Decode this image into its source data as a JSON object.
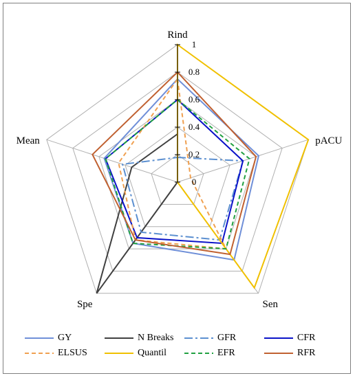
{
  "chart_data": {
    "type": "radar",
    "axes": [
      "Rind",
      "pACU",
      "Sen",
      "Spe",
      "Mean"
    ],
    "rmax": 1,
    "ticks": [
      "0",
      "0.2",
      "0.4",
      "0.6",
      "0.8",
      "1"
    ],
    "tick_values": [
      0,
      0.2,
      0.4,
      0.6,
      0.8,
      1
    ],
    "grid": true,
    "legend_position": "bottom",
    "series": [
      {
        "name": "GY",
        "values": [
          0.75,
          0.62,
          0.7,
          0.55,
          0.56
        ],
        "color": "#6f8fd8",
        "dash": "solid"
      },
      {
        "name": "N Breaks",
        "values": [
          0.35,
          0.0,
          0.0,
          1.0,
          0.35
        ],
        "color": "#404040",
        "dash": "solid"
      },
      {
        "name": "GFR",
        "values": [
          0.18,
          0.5,
          0.52,
          0.45,
          0.42
        ],
        "color": "#5b8fd0",
        "dash": "dashdot"
      },
      {
        "name": "CFR",
        "values": [
          0.6,
          0.5,
          0.55,
          0.5,
          0.55
        ],
        "color": "#0a12c8",
        "dash": "solid"
      },
      {
        "name": "ELSUS",
        "values": [
          0.75,
          0.1,
          0.6,
          0.52,
          0.45
        ],
        "color": "#f0a050",
        "dash": "dash"
      },
      {
        "name": "Quantil",
        "values": [
          1.0,
          1.0,
          0.95,
          0.0,
          0.0
        ],
        "color": "#f0c000",
        "dash": "solid"
      },
      {
        "name": "EFR",
        "values": [
          0.6,
          0.55,
          0.6,
          0.55,
          0.55
        ],
        "color": "#20a040",
        "dash": "dash"
      },
      {
        "name": "RFR",
        "values": [
          0.8,
          0.6,
          0.65,
          0.52,
          0.65
        ],
        "color": "#c06030",
        "dash": "solid"
      }
    ]
  }
}
